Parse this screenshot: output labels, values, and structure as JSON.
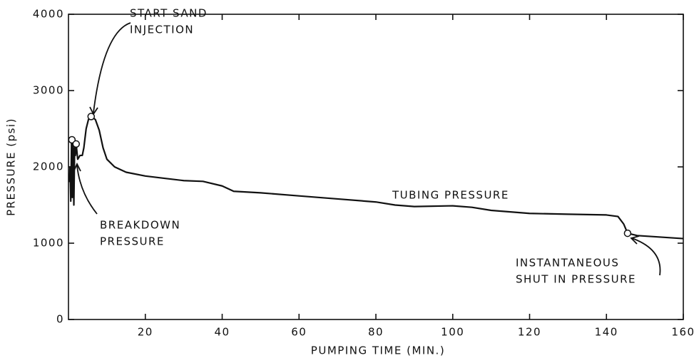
{
  "chart_data": {
    "type": "line",
    "x_label": "PUMPING TIME (MIN.)",
    "y_label": "PRESSURE (psi)",
    "xlim": [
      0,
      160
    ],
    "xticks": [
      20,
      40,
      60,
      80,
      100,
      120,
      140,
      160
    ],
    "ylim": [
      0,
      4000
    ],
    "yticks": [
      0,
      1000,
      2000,
      3000,
      4000
    ],
    "grid": false,
    "series": [
      {
        "color": "#111111",
        "x": [
          0.2,
          0.4,
          0.6,
          0.8,
          1.0,
          1.2,
          1.4,
          1.6,
          1.8,
          2.0,
          2.4,
          3.0,
          3.6,
          4.0,
          4.6,
          5.2,
          5.9,
          7,
          8,
          9,
          10,
          12,
          15,
          20,
          25,
          30,
          35,
          40,
          43,
          50,
          60,
          70,
          80,
          85,
          90,
          100,
          105,
          110,
          120,
          130,
          140,
          143,
          144.5,
          145.5,
          148,
          160
        ],
        "values": [
          1800,
          2000,
          1550,
          2350,
          1600,
          2300,
          1500,
          2250,
          2150,
          2300,
          2100,
          2150,
          2150,
          2250,
          2500,
          2620,
          2660,
          2620,
          2480,
          2250,
          2100,
          2000,
          1930,
          1880,
          1850,
          1820,
          1810,
          1750,
          1680,
          1660,
          1620,
          1580,
          1540,
          1500,
          1480,
          1490,
          1470,
          1430,
          1390,
          1380,
          1370,
          1350,
          1250,
          1130,
          1100,
          1060
        ]
      }
    ],
    "markers": {
      "x": [
        0.9,
        2.0,
        5.9,
        145.5
      ],
      "values": [
        2355,
        2300,
        2660,
        1130
      ]
    },
    "annotations": [
      {
        "lines": [
          "START SAND",
          "INJECTION"
        ]
      },
      {
        "lines": [
          "BREAKDOWN",
          "PRESSURE"
        ]
      },
      {
        "lines": [
          "TUBING PRESSURE"
        ]
      },
      {
        "lines": [
          "INSTANTANEOUS",
          "SHUT IN PRESSURE"
        ]
      }
    ]
  }
}
